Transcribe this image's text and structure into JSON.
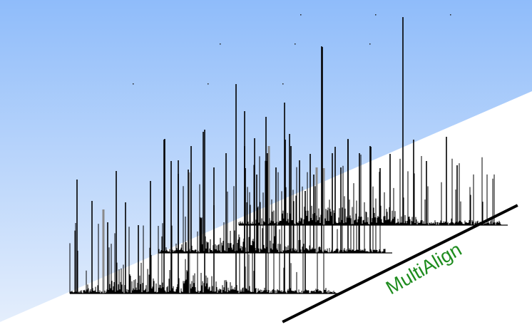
{
  "brand": {
    "text": "MultiAlign",
    "color": "#1e8c1e",
    "line_color": "#000000"
  },
  "background": {
    "gradient_top": "#8fbcfa",
    "gradient_bottom": "#e4eefc",
    "lower_area": "#ffffff"
  },
  "spectra": {
    "count": 3,
    "peak_color": "#000000",
    "shadow_peak_color": "#8a8a8a"
  }
}
